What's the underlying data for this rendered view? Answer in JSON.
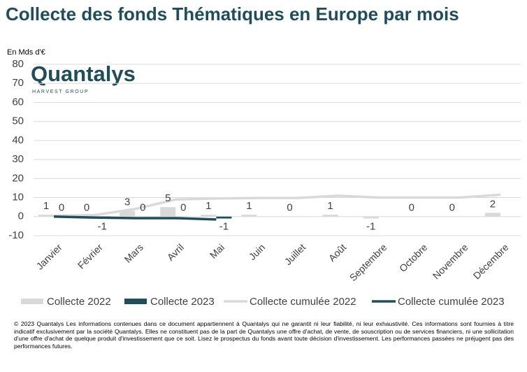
{
  "chart_data": {
    "type": "combo",
    "title": "Collecte des fonds Thématiques en Europe par mois",
    "y_axis_label": "En Mds d'€",
    "logo": {
      "name": "Quantalys",
      "tagline": "HARVEST GROUP"
    },
    "categories": [
      "Janvier",
      "Février",
      "Mars",
      "Avril",
      "Mai",
      "Juin",
      "Juillet",
      "Août",
      "Septembre",
      "Octobre",
      "Novembre",
      "Décembre"
    ],
    "series": [
      {
        "name": "Collecte 2022",
        "type": "bar",
        "color": "#d9d9d9",
        "values": [
          1,
          0,
          3,
          5,
          1,
          1,
          0,
          1,
          -1,
          0,
          0,
          2
        ]
      },
      {
        "name": "Collecte 2023",
        "type": "bar",
        "color": "#1f4e5a",
        "values": [
          0,
          -1,
          0,
          0,
          -1,
          null,
          null,
          null,
          null,
          null,
          null,
          null
        ]
      },
      {
        "name": "Collecte cumulée 2022",
        "type": "line",
        "color": "#d9d9d9",
        "values": [
          0.5,
          0.8,
          4,
          9,
          9.5,
          9.8,
          9.8,
          11,
          10,
          10,
          10,
          11.5
        ]
      },
      {
        "name": "Collecte cumulée 2023",
        "type": "line",
        "color": "#1f4e5a",
        "values": [
          0,
          -0.5,
          -0.8,
          -0.8,
          -1.5,
          null,
          null,
          null,
          null,
          null,
          null,
          null
        ]
      }
    ],
    "ylim": [
      -10,
      80
    ],
    "yticks": [
      -10,
      0,
      10,
      20,
      30,
      40,
      50,
      60,
      70,
      80
    ],
    "grid": true,
    "legend": "bottom",
    "footer": "© 2023 Quantalys Les informations contenues dans ce document appartiennent à Quantalys qui ne garantit ni leur fiabilité, ni leur exhaustivité. Ces informations sont fournies à titre indicatif exclusivement par la société Quantalys. Elles ne constituent pas de la part de Quantalys une offre d'achat, de vente, de souscription ou de services financiers, ni une sollicitation d'une offre d'achat de quelque produit d'investissement que ce soit. Lisez le prospectus du fonds avant toute décision d'investissement. Les performances passées ne préjugent pas des performances futures."
  }
}
